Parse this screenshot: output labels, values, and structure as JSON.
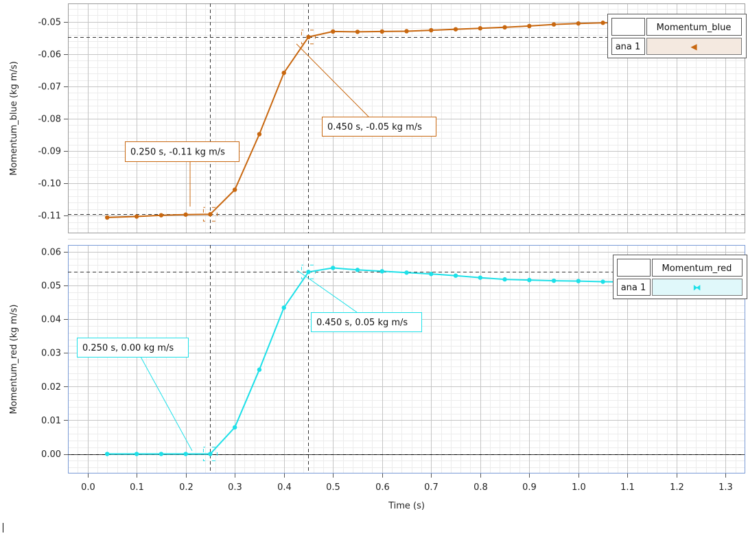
{
  "chart_data": [
    {
      "type": "line",
      "ylabel": "Momentum_blue (kg m/s)",
      "xlim": [
        -0.04,
        1.34
      ],
      "ylim": [
        -0.1155,
        -0.0443
      ],
      "y_ticks": [
        "-0.05",
        "-0.06",
        "-0.07",
        "-0.08",
        "-0.09",
        "-0.10",
        "-0.11"
      ],
      "y_tick_values": [
        -0.05,
        -0.06,
        -0.07,
        -0.08,
        -0.09,
        -0.1,
        -0.11
      ],
      "grid": true,
      "legend": "top-right",
      "color": "#c8670f",
      "series": [
        {
          "name": "Momentum_blue",
          "x": [
            0.04,
            0.1,
            0.15,
            0.2,
            0.25,
            0.3,
            0.35,
            0.4,
            0.45,
            0.5,
            0.55,
            0.6,
            0.65,
            0.7,
            0.75,
            0.8,
            0.85,
            0.9,
            0.95,
            1.0,
            1.05,
            1.1
          ],
          "y": [
            -0.1106,
            -0.1103,
            -0.1099,
            -0.1097,
            -0.1096,
            -0.102,
            -0.0848,
            -0.0658,
            -0.0547,
            -0.053,
            -0.0531,
            -0.053,
            -0.0529,
            -0.0526,
            -0.0523,
            -0.052,
            -0.0517,
            -0.0513,
            -0.0508,
            -0.0505,
            -0.0503,
            -0.0502
          ]
        }
      ],
      "legend_table": {
        "name": "Momentum_blue",
        "run": "ana 1",
        "marker": "◀"
      },
      "cursors": [
        {
          "x": 0.25,
          "y": -0.1096,
          "label": "0.250 s, -0.11 kg m/s"
        },
        {
          "x": 0.45,
          "y": -0.0547,
          "label": "0.450 s, -0.05 kg m/s"
        }
      ]
    },
    {
      "type": "line",
      "xlabel": "Time (s)",
      "ylabel": "Momentum_red (kg m/s)",
      "xlim": [
        -0.04,
        1.34
      ],
      "ylim": [
        -0.0058,
        0.062
      ],
      "x_ticks": [
        "0.0",
        "0.1",
        "0.2",
        "0.3",
        "0.4",
        "0.5",
        "0.6",
        "0.7",
        "0.8",
        "0.9",
        "1.0",
        "1.1",
        "1.2",
        "1.3"
      ],
      "x_tick_values": [
        0,
        0.1,
        0.2,
        0.3,
        0.4,
        0.5,
        0.6,
        0.7,
        0.8,
        0.9,
        1.0,
        1.1,
        1.2,
        1.3
      ],
      "y_ticks": [
        "0.06",
        "0.05",
        "0.04",
        "0.03",
        "0.02",
        "0.01",
        "0.00"
      ],
      "y_tick_values": [
        0.06,
        0.05,
        0.04,
        0.03,
        0.02,
        0.01,
        0.0
      ],
      "grid": true,
      "legend": "top-right",
      "color": "#1de0e8",
      "series": [
        {
          "name": "Momentum_red",
          "x": [
            0.04,
            0.1,
            0.15,
            0.2,
            0.25,
            0.3,
            0.35,
            0.4,
            0.45,
            0.5,
            0.55,
            0.6,
            0.65,
            0.7,
            0.75,
            0.8,
            0.85,
            0.9,
            0.95,
            1.0,
            1.05,
            1.1
          ],
          "y": [
            0.0,
            0.0,
            0.0,
            0.0,
            0.0,
            0.0079,
            0.025,
            0.0434,
            0.054,
            0.0552,
            0.0546,
            0.0542,
            0.0538,
            0.0534,
            0.0529,
            0.0523,
            0.0518,
            0.0516,
            0.0514,
            0.0513,
            0.0511,
            0.051
          ]
        }
      ],
      "legend_table": {
        "name": "Momentum_red",
        "run": "ana 1",
        "marker": "⧓"
      },
      "cursors": [
        {
          "x": 0.25,
          "y": 0.0,
          "label": "0.250 s, 0.00 kg m/s"
        },
        {
          "x": 0.45,
          "y": 0.054,
          "label": "0.450 s, 0.05 kg m/s"
        }
      ]
    }
  ]
}
